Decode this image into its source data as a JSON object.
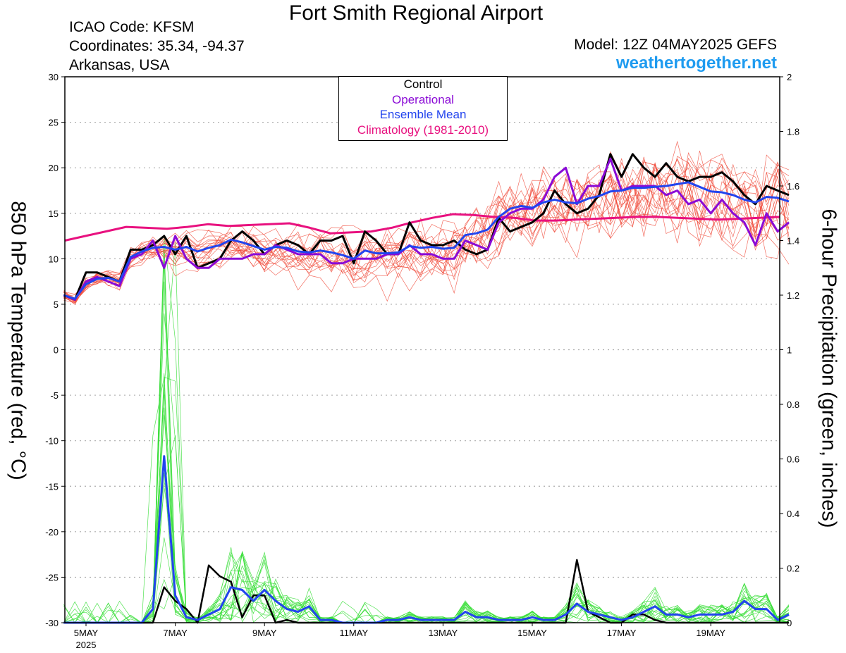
{
  "header": {
    "title": "Fort Smith Regional Airport",
    "icao": "ICAO Code: KFSM",
    "coords": "Coordinates: 35.34, -94.37",
    "region": "Arkansas, USA",
    "model": "Model: 12Z 04MAY2025 GEFS",
    "site": "weathertogether.net"
  },
  "legend": {
    "control": "Control",
    "operational": "Operational",
    "mean": "Ensemble Mean",
    "climo": "Climatology (1981-2010)"
  },
  "axes": {
    "left_label": "850 hPa Temperature (red, °C)",
    "right_label": "6-hour Precipitation (green, inches)",
    "left_ticks": [
      "30",
      "25",
      "20",
      "15",
      "10",
      "5",
      "0",
      "-5",
      "-10",
      "-15",
      "-20",
      "-25",
      "-30"
    ],
    "right_ticks": [
      "2",
      "1.8",
      "1.6",
      "1.4",
      "1.2",
      "1",
      "0.8",
      "0.6",
      "0.4",
      "0.2",
      "0"
    ],
    "x_ticks": [
      "5MAY",
      "7MAY",
      "9MAY",
      "11MAY",
      "13MAY",
      "15MAY",
      "17MAY",
      "19MAY"
    ],
    "x_year": "2025"
  },
  "colors": {
    "control": "#000000",
    "operational": "#8a0ad6",
    "mean": "#2244ee",
    "climo": "#e8117f",
    "members_temp": "#f04a3a",
    "members_precip": "#33dd33"
  },
  "chart_data": {
    "type": "line",
    "x_start": "2025-05-04 12Z",
    "x_step_hours": 6,
    "ylim_left": [
      -30,
      30
    ],
    "ylim_right": [
      0,
      2
    ],
    "grid": "horizontal dotted",
    "series": [
      {
        "name": "Control",
        "axis": "left",
        "values": [
          6,
          5.5,
          8.5,
          8.5,
          8,
          7.5,
          11,
          11,
          11.5,
          12.5,
          10.5,
          12.5,
          9,
          9.5,
          10,
          12,
          13,
          12,
          10.5,
          11.5,
          12,
          11.5,
          10.5,
          12,
          12,
          12.5,
          9.5,
          13,
          12,
          10.5,
          10.5,
          14,
          12,
          11.5,
          11.5,
          12,
          11,
          10.5,
          11,
          14.5,
          13,
          13.5,
          14,
          15,
          17.5,
          16,
          15,
          15.5,
          17,
          21.5,
          19,
          21.5,
          20,
          19,
          20.5,
          19,
          18.5,
          19,
          19,
          19.5,
          18.5,
          17,
          16,
          18,
          17.5,
          17
        ]
      },
      {
        "name": "Operational",
        "axis": "left",
        "values": [
          6,
          5.5,
          7.5,
          8,
          7.5,
          7,
          10,
          10.5,
          12,
          9,
          12.5,
          10,
          9,
          9,
          10,
          10,
          10,
          10.5,
          10.5,
          11.5,
          11,
          10.5,
          10.5,
          10.5,
          9.5,
          9.5,
          10,
          10,
          10,
          10.5,
          10.5,
          11.5,
          10.5,
          10.5,
          10,
          10,
          12,
          11.5,
          11,
          14,
          15,
          15.5,
          15.5,
          16.5,
          19,
          20,
          16,
          18,
          18,
          21,
          17.5,
          18,
          18,
          18,
          17,
          17.5,
          16,
          16.5,
          15,
          16.5,
          15,
          14,
          11.5,
          15,
          13,
          14
        ]
      },
      {
        "name": "Ensemble Mean",
        "axis": "left",
        "values": [
          6,
          5.6,
          7.2,
          7.8,
          7.9,
          7.5,
          10.2,
          10.8,
          11.2,
          11.3,
          11.0,
          11.3,
          10.8,
          11.2,
          11.5,
          12.1,
          11.8,
          11.4,
          11.0,
          11.3,
          11.2,
          10.8,
          10.7,
          10.9,
          10.7,
          10.4,
          10.0,
          10.9,
          10.6,
          10.6,
          10.7,
          11.4,
          11.2,
          11.3,
          11.1,
          11.2,
          12.6,
          12.8,
          13.2,
          14.6,
          15.5,
          15.8,
          15.6,
          16.2,
          16.5,
          16.2,
          16.1,
          16.6,
          16.9,
          17.4,
          17.5,
          17.8,
          17.8,
          17.9,
          18.0,
          18.2,
          18.4,
          17.9,
          17.4,
          17.3,
          17.0,
          16.5,
          16.2,
          16.8,
          16.7,
          16.3
        ]
      },
      {
        "name": "Climatology (1981-2010)",
        "axis": "left",
        "values": [
          12,
          12.5,
          13,
          13.5,
          13.4,
          13.3,
          13.5,
          13.8,
          13.6,
          13.7,
          13.8,
          13.9,
          13.4,
          12.8,
          12.9,
          13.0,
          13.4,
          14.0,
          14.5,
          14.9,
          14.8,
          14.6,
          14.5,
          14.2,
          14.2,
          14.3,
          14.4,
          14.5,
          14.6,
          14.6,
          14.5,
          14.4,
          14.3,
          14.4,
          14.5,
          14.6
        ]
      },
      {
        "name": "Control",
        "axis": "right",
        "values": [
          0,
          0,
          0,
          0,
          0,
          0,
          0,
          0,
          0,
          0.13,
          0.08,
          0.05,
          0,
          0.21,
          0.17,
          0.15,
          0.02,
          0.1,
          0.1,
          0,
          0.01,
          0,
          0,
          0,
          0,
          0,
          0,
          0,
          0,
          0,
          0,
          0,
          0,
          0,
          0,
          0,
          0,
          0,
          0,
          0,
          0,
          0,
          0,
          0,
          0,
          0,
          0.23,
          0.04,
          0.02,
          0,
          0,
          0.03,
          0.03,
          0.01,
          0,
          0,
          0,
          0,
          0,
          0,
          0,
          0,
          0,
          0,
          0,
          0
        ]
      },
      {
        "name": "Ensemble Mean",
        "axis": "right",
        "values": [
          0,
          0,
          0,
          0,
          0,
          0,
          0,
          0,
          0.05,
          0.61,
          0.1,
          0.02,
          0.01,
          0.03,
          0.05,
          0.13,
          0.12,
          0.08,
          0.12,
          0.08,
          0.05,
          0.04,
          0.06,
          0.01,
          0.01,
          0,
          0,
          0,
          0,
          0.01,
          0.01,
          0.02,
          0.01,
          0.01,
          0.01,
          0.01,
          0.04,
          0.02,
          0.02,
          0.01,
          0.01,
          0.01,
          0.02,
          0.01,
          0.01,
          0.03,
          0.07,
          0.04,
          0.03,
          0.02,
          0.01,
          0.02,
          0.04,
          0.06,
          0.03,
          0.03,
          0.02,
          0.03,
          0.03,
          0.03,
          0.04,
          0.08,
          0.05,
          0.05,
          0.01,
          0.03
        ]
      }
    ]
  }
}
